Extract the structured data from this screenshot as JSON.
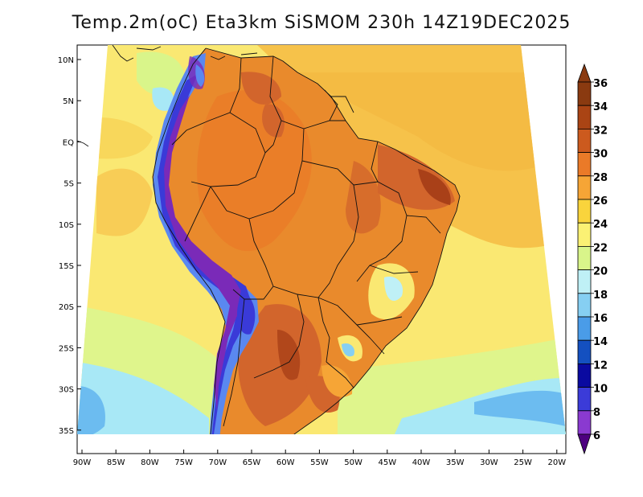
{
  "title": "Temp.2m(oC) Eta3km SiSMOM 230h 14Z19DEC2025",
  "map": {
    "variable": "2 m air temperature",
    "units": "oC",
    "region": "South America",
    "lon_ticks": [
      "90W",
      "85W",
      "80W",
      "75W",
      "70W",
      "65W",
      "60W",
      "55W",
      "50W",
      "45W",
      "40W",
      "35W",
      "30W",
      "25W",
      "20W"
    ],
    "lat_ticks": [
      "10N",
      "5N",
      "EQ",
      "5S",
      "10S",
      "15S",
      "20S",
      "25S",
      "30S",
      "35S"
    ],
    "palette": {
      "ocean_warm": "#f6c24a",
      "ocean_mild": "#fae872",
      "ocean_cool": "#dff58c",
      "ocean_cold": "#a8e8f6",
      "ocean_colder": "#6cbcf0",
      "land_hot": "#e98a2c",
      "land_hotter": "#d2652c",
      "land_extreme": "#a94018",
      "andes_cold": "#3a3ad8",
      "andes_colder": "#7a2ab8",
      "andes_cool": "#5a88f0",
      "border": "#111111"
    }
  },
  "colorbar": {
    "labels": [
      "36",
      "34",
      "32",
      "30",
      "28",
      "26",
      "24",
      "22",
      "20",
      "18",
      "16",
      "14",
      "12",
      "10",
      "8",
      "6"
    ],
    "colors": [
      "#f2f2f2",
      "#8a3a10",
      "#aa4414",
      "#cc5a1e",
      "#ea7a28",
      "#f6a536",
      "#f9d43c",
      "#fbf174",
      "#d9f58a",
      "#bff0f6",
      "#86cff2",
      "#4a9ce8",
      "#1450c0",
      "#0a0aa0",
      "#3b3bd8",
      "#8a3ad0",
      "#70129a",
      "#4d0080"
    ]
  }
}
